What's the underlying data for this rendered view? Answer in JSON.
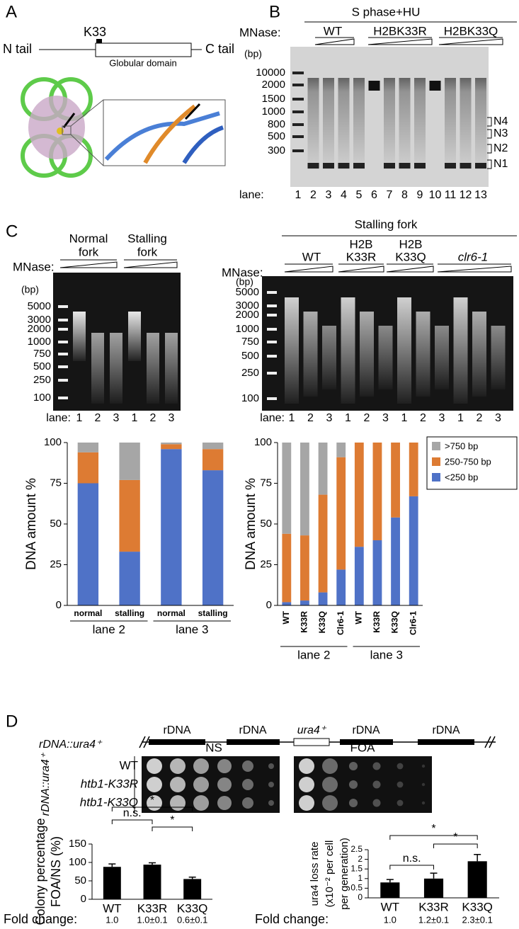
{
  "panel_labels": [
    "A",
    "B",
    "C",
    "D"
  ],
  "panel_a": {
    "site": "K33",
    "n_tail": "N tail",
    "c_tail": "C tail",
    "domain": "Globular domain"
  },
  "panel_b": {
    "condition": "S phase+HU",
    "mnase": "MNase:",
    "strains": [
      "WT",
      "H2BK33R",
      "H2BK33Q"
    ],
    "unit": "(bp)",
    "ladder": [
      "10000",
      "2000",
      "1500",
      "1000",
      "800",
      "500",
      "300"
    ],
    "bands": [
      "N4",
      "N3",
      "N2",
      "N1"
    ],
    "lane_prefix": "lane:",
    "lanes": [
      "1",
      "2",
      "3",
      "4",
      "5",
      "6",
      "7",
      "8",
      "9",
      "10",
      "11",
      "12",
      "13"
    ]
  },
  "panel_c": {
    "left": {
      "headers": [
        [
          "Normal",
          "fork"
        ],
        [
          "Stalling",
          "fork"
        ]
      ],
      "mnase": "MNase:",
      "unit": "(bp)",
      "ladder": [
        "5000",
        "3000",
        "2000",
        "1000",
        "750",
        "500",
        "250",
        "100"
      ],
      "lane_prefix": "lane:",
      "lanes": [
        "1",
        "2",
        "3",
        "1",
        "2",
        "3"
      ]
    },
    "right": {
      "condition": "Stalling fork",
      "mnase": "MNase:",
      "unit": "(bp)",
      "strains": [
        [
          "WT"
        ],
        [
          "H2B",
          "K33R"
        ],
        [
          "H2B",
          "K33Q"
        ],
        [
          "clr6-1"
        ]
      ],
      "ladder": [
        "5000",
        "3000",
        "2000",
        "1000",
        "750",
        "500",
        "250",
        "100"
      ],
      "lane_prefix": "lane:",
      "lanes": [
        "1",
        "2",
        "3",
        "1",
        "2",
        "3",
        "1",
        "2",
        "3",
        "1",
        "2",
        "3"
      ]
    }
  },
  "panel_d": {
    "construct": "rDNA::ura4⁺",
    "elements": [
      "rDNA",
      "rDNA",
      "ura4⁺",
      "rDNA",
      "rDNA"
    ],
    "media": [
      "NS",
      "FOA"
    ],
    "strain_axis": "rDNA::ura4⁺",
    "strains": [
      "WT",
      "htb1-K33R",
      "htb1-K33Q"
    ]
  },
  "chart_data": [
    {
      "type": "stacked_bar",
      "ylabel": "DNA amount %",
      "categories": [
        "normal",
        "stalling",
        "normal",
        "stalling"
      ],
      "groups": [
        "lane 2",
        "lane 3"
      ],
      "series": [
        {
          "color": "#4f72c7",
          "values": [
            75,
            33,
            96,
            83
          ]
        },
        {
          "color": "#dd7b33",
          "values": [
            19,
            44,
            3,
            13
          ]
        },
        {
          "color": "#a6a6a6",
          "values": [
            6,
            23,
            1,
            4
          ]
        }
      ],
      "ylim": [
        0,
        100
      ],
      "yticks": [
        0,
        25,
        50,
        75,
        100
      ],
      "legend": false
    },
    {
      "type": "stacked_bar",
      "ylabel": "DNA amount %",
      "categories": [
        "WT",
        "K33R",
        "K33Q",
        "Clr6-1",
        "WT",
        "K33R",
        "K33Q",
        "Clr6-1"
      ],
      "groups": [
        "lane 2",
        "lane 3"
      ],
      "series": [
        {
          "name": "<250 bp",
          "color": "#4f72c7",
          "values": [
            2,
            3,
            8,
            22,
            36,
            40,
            54,
            67
          ]
        },
        {
          "name": "250-750 bp",
          "color": "#dd7b33",
          "values": [
            42,
            40,
            60,
            69,
            64,
            60,
            46,
            33
          ]
        },
        {
          "name": ">750 bp",
          "color": "#a6a6a6",
          "values": [
            56,
            57,
            32,
            9,
            0,
            0,
            0,
            0
          ]
        }
      ],
      "ylim": [
        0,
        100
      ],
      "yticks": [
        0,
        25,
        50,
        75,
        100
      ],
      "legend": true
    },
    {
      "type": "bar",
      "ylabel": [
        "Colony percentage",
        "FOA/NS (%)"
      ],
      "categories": [
        "WT",
        "K33R",
        "K33Q"
      ],
      "values": [
        88,
        94,
        55
      ],
      "errors": [
        8,
        5,
        5
      ],
      "color": "#000000",
      "ylim": [
        0,
        150
      ],
      "yticks": [
        0,
        50,
        100,
        150
      ],
      "annotations": [
        "n.s.",
        "*",
        "*"
      ],
      "footer_label": "Fold change:",
      "footer": [
        "1.0",
        "1.0±0.1",
        "0.6±0.1"
      ]
    },
    {
      "type": "bar",
      "ylabel": [
        "ura4 loss rate",
        "(x10⁻² per cell",
        "per generation)"
      ],
      "categories": [
        "WT",
        "K33R",
        "K33Q"
      ],
      "values": [
        0.8,
        1.0,
        1.9
      ],
      "errors": [
        0.15,
        0.28,
        0.35
      ],
      "color": "#000000",
      "ylim": [
        0,
        2.5
      ],
      "yticks": [
        0,
        0.5,
        1,
        1.5,
        2,
        2.5
      ],
      "annotations": [
        "n.s.",
        "*",
        "*"
      ],
      "footer_label": "Fold change:",
      "footer": [
        "1.0",
        "1.2±0.1",
        "2.3±0.1"
      ]
    }
  ]
}
